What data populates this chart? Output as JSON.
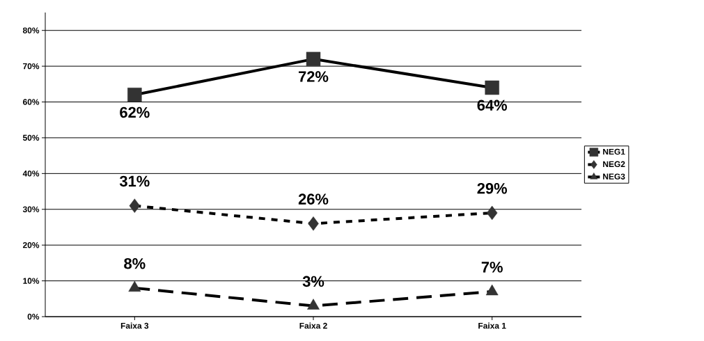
{
  "chart_data": {
    "type": "line",
    "categories": [
      "Faixa 3",
      "Faixa 2",
      "Faixa 1"
    ],
    "series": [
      {
        "name": "NEG1",
        "color": "#000000",
        "values": [
          62,
          72,
          64
        ],
        "value_labels": [
          "62%",
          "72%",
          "64%"
        ],
        "marker": "square",
        "line_style": "solid"
      },
      {
        "name": "NEG2",
        "color": "#000000",
        "values": [
          31,
          26,
          29
        ],
        "value_labels": [
          "31%",
          "26%",
          "29%"
        ],
        "marker": "diamond",
        "line_style": "dotted"
      },
      {
        "name": "NEG3",
        "color": "#000000",
        "values": [
          8,
          3,
          7
        ],
        "value_labels": [
          "8%",
          "3%",
          "7%"
        ],
        "marker": "triangle",
        "line_style": "dashed"
      }
    ],
    "ylim": [
      0,
      85
    ],
    "yticks": [
      {
        "value": 0,
        "label": "0%"
      },
      {
        "value": 10,
        "label": "10%"
      },
      {
        "value": 20,
        "label": "20%"
      },
      {
        "value": 30,
        "label": "30%"
      },
      {
        "value": 40,
        "label": "40%"
      },
      {
        "value": 50,
        "label": "50%"
      },
      {
        "value": 60,
        "label": "60%"
      },
      {
        "value": 70,
        "label": "70%"
      },
      {
        "value": 80,
        "label": "80%"
      }
    ],
    "grid": "y",
    "legend": "right"
  }
}
